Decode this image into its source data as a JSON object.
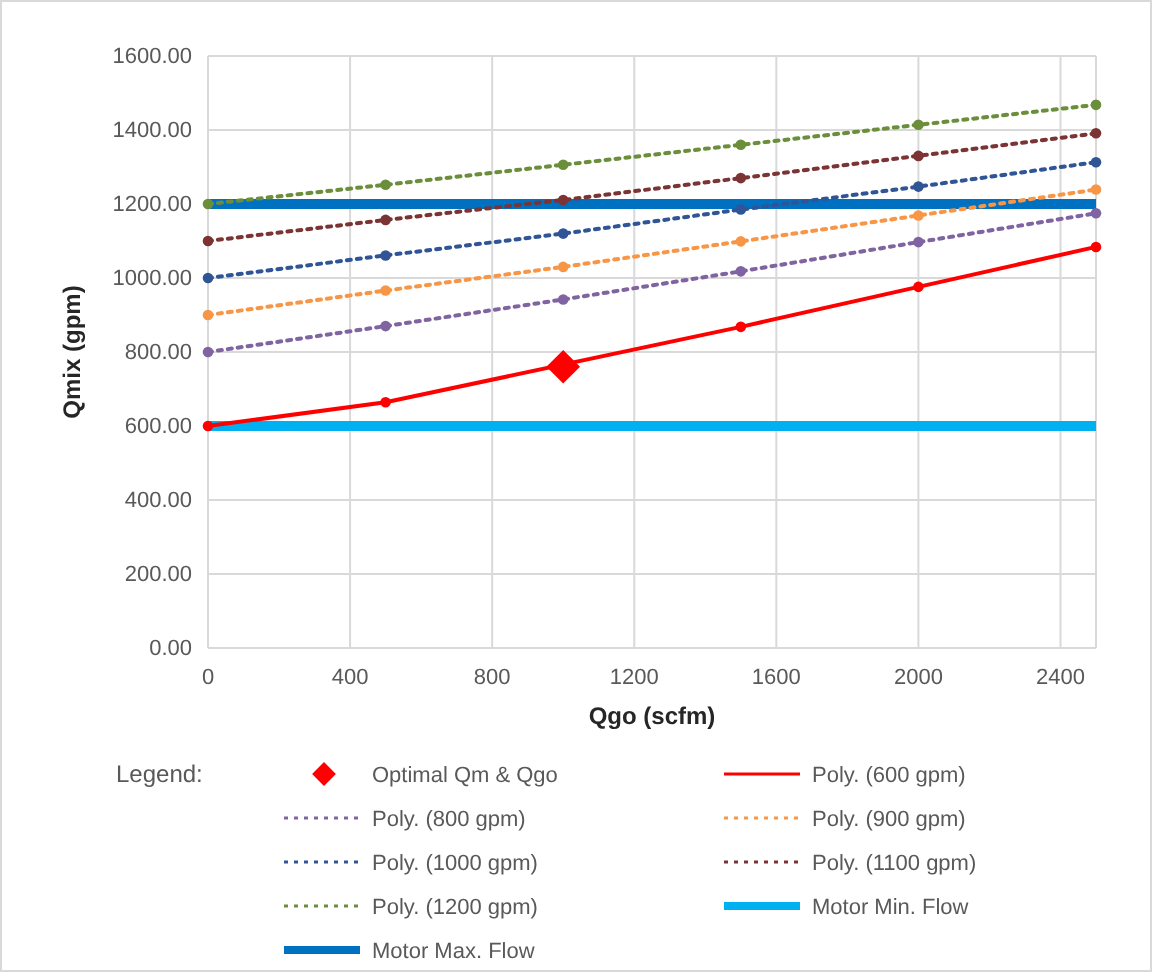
{
  "chart_data": {
    "type": "line",
    "xlabel": "Qgo (scfm)",
    "ylabel": "Qmix (gpm)",
    "legend_title": "Legend:",
    "xlim": [
      0,
      2500
    ],
    "xticks": [
      0,
      400,
      800,
      1200,
      1600,
      2000,
      2400
    ],
    "ylim": [
      0,
      1600
    ],
    "yticks": [
      {
        "value": 0,
        "label": "0.00"
      },
      {
        "value": 200,
        "label": "200.00"
      },
      {
        "value": 400,
        "label": "400.00"
      },
      {
        "value": 600,
        "label": "600.00"
      },
      {
        "value": 800,
        "label": "800.00"
      },
      {
        "value": 1000,
        "label": "1000.00"
      },
      {
        "value": 1200,
        "label": "1200.00"
      },
      {
        "value": 1400,
        "label": "1400.00"
      },
      {
        "value": 1600,
        "label": "1600.00"
      }
    ],
    "grid": true,
    "legend": "bottom",
    "series": [
      {
        "name": "Optimal Qm & Qgo",
        "type": "scatter",
        "marker": "diamond",
        "color": "#ff0000",
        "x": [
          1000
        ],
        "values": [
          760
        ]
      },
      {
        "name": "Poly. (600 gpm)",
        "color": "#ff0000",
        "line_style": "solid",
        "marker": "circle",
        "x": [
          0,
          500,
          1500,
          2000,
          2500
        ],
        "values": [
          600,
          664,
          868,
          976,
          1084
        ]
      },
      {
        "name": "Poly. (800 gpm)",
        "color": "#8064a2",
        "line_style": "dotted",
        "marker": "circle",
        "x": [
          0,
          500,
          1000,
          1500,
          2000,
          2500
        ],
        "values": [
          800,
          870,
          942,
          1018,
          1097,
          1175
        ]
      },
      {
        "name": "Poly. (900 gpm)",
        "color": "#f79646",
        "line_style": "dotted",
        "marker": "circle",
        "x": [
          0,
          500,
          1000,
          1500,
          2000,
          2500
        ],
        "values": [
          900,
          966,
          1030,
          1099,
          1169,
          1239
        ]
      },
      {
        "name": "Poly. (1000 gpm)",
        "color": "#2f5597",
        "line_style": "dotted",
        "marker": "circle",
        "x": [
          0,
          500,
          1000,
          1500,
          2000,
          2500
        ],
        "values": [
          1000,
          1061,
          1120,
          1185,
          1247,
          1313
        ]
      },
      {
        "name": "Poly. (1100 gpm)",
        "color": "#7b3333",
        "line_style": "dotted",
        "marker": "circle",
        "x": [
          0,
          500,
          1000,
          1500,
          2000,
          2500
        ],
        "values": [
          1100,
          1157,
          1211,
          1270,
          1330,
          1391
        ]
      },
      {
        "name": "Poly. (1200 gpm)",
        "color": "#6b8e3a",
        "line_style": "dotted",
        "marker": "circle",
        "x": [
          0,
          500,
          1000,
          1500,
          2000,
          2500
        ],
        "values": [
          1200,
          1252,
          1306,
          1360,
          1414,
          1468
        ]
      },
      {
        "name": "Motor Min. Flow",
        "color": "#00b0f0",
        "line_style": "solid",
        "marker": "none",
        "x": [
          0,
          2500
        ],
        "values": [
          600,
          600
        ]
      },
      {
        "name": "Motor Max. Flow",
        "color": "#0070c0",
        "line_style": "solid",
        "marker": "none",
        "x": [
          0,
          2500
        ],
        "values": [
          1200,
          1200
        ]
      }
    ]
  }
}
